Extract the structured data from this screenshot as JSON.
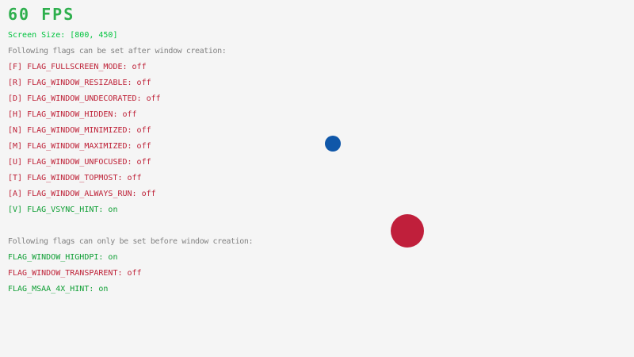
{
  "hud": {
    "fps_text": "60 FPS",
    "screen_size_text": "Screen Size: [800, 450]"
  },
  "sections": [
    {
      "header": "Following flags can be set after window creation:",
      "flags": [
        {
          "text": "[F] FLAG_FULLSCREEN_MODE: off",
          "state": "off"
        },
        {
          "text": "[R] FLAG_WINDOW_RESIZABLE: off",
          "state": "off"
        },
        {
          "text": "[D] FLAG_WINDOW_UNDECORATED: off",
          "state": "off"
        },
        {
          "text": "[H] FLAG_WINDOW_HIDDEN: off",
          "state": "off"
        },
        {
          "text": "[N] FLAG_WINDOW_MINIMIZED: off",
          "state": "off"
        },
        {
          "text": "[M] FLAG_WINDOW_MAXIMIZED: off",
          "state": "off"
        },
        {
          "text": "[U] FLAG_WINDOW_UNFOCUSED: off",
          "state": "off"
        },
        {
          "text": "[T] FLAG_WINDOW_TOPMOST: off",
          "state": "off"
        },
        {
          "text": "[A] FLAG_WINDOW_ALWAYS_RUN: off",
          "state": "off"
        },
        {
          "text": "[V] FLAG_VSYNC_HINT: on",
          "state": "on"
        }
      ]
    },
    {
      "header": "Following flags can only be set before window creation:",
      "flags": [
        {
          "text": "FLAG_WINDOW_HIGHDPI: on",
          "state": "on"
        },
        {
          "text": "FLAG_WINDOW_TRANSPARENT: off",
          "state": "off"
        },
        {
          "text": "FLAG_MSAA_4X_HINT: on",
          "state": "on"
        }
      ]
    }
  ],
  "colors": {
    "background": "#F5F5F5",
    "fps": "#2EAF4D",
    "screen": "#00C33E",
    "header": "#828282",
    "on": "#0D9E33",
    "off": "#BE2137",
    "ball_small": "#0F57A9",
    "ball_large": "#C01F3B"
  }
}
